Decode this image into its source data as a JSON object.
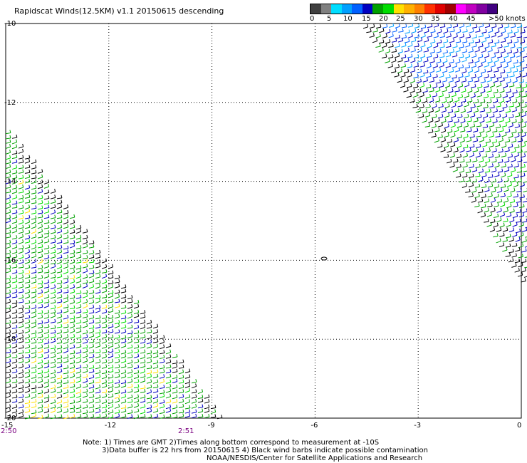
{
  "title": "Rapidscat Winds(12.5KM) v1.1 20150615 descending",
  "legend": {
    "colors": [
      "#404040",
      "#808080",
      "#00ddff",
      "#00a0ff",
      "#0060ff",
      "#0000c0",
      "#00a000",
      "#00dd00",
      "#ffe000",
      "#ffb000",
      "#ff8000",
      "#ff3000",
      "#e00000",
      "#a00000",
      "#ff00ff",
      "#c000c0",
      "#8000a0",
      "#400080"
    ],
    "labels": [
      "0",
      "5",
      "10",
      "15",
      "20",
      "25",
      "30",
      "35",
      "40",
      "45",
      ">50 knots"
    ],
    "units": "knots"
  },
  "axes": {
    "y_labels": [
      "-10",
      "-12",
      "-14",
      "-16",
      "-18",
      "-20"
    ],
    "x_labels": [
      "-15",
      "-12",
      "-9",
      "-6",
      "-3",
      "0"
    ]
  },
  "times": [
    "2:50",
    "2:51"
  ],
  "island_label": "",
  "notes": {
    "line1": "Note: 1) Times are GMT 2)Times along bottom correspond to measurement at -10S",
    "line2": "3)Data buffer is 22 hrs from 20150615 4) Black wind barbs indicate possible contamination",
    "line3": "NOAA/NESDIS/Center for Satellite Applications and Research"
  }
}
